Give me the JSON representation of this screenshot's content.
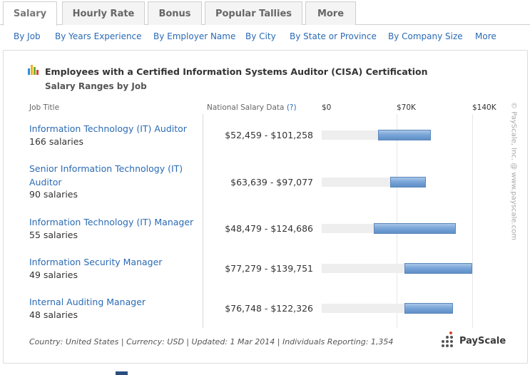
{
  "tabs": [
    {
      "label": "Salary",
      "active": true
    },
    {
      "label": "Hourly Rate"
    },
    {
      "label": "Bonus"
    },
    {
      "label": "Popular Tallies"
    },
    {
      "label": "More"
    }
  ],
  "subnav": [
    "By Job",
    "By Years Experience",
    "By Employer Name",
    "By City",
    "By State or Province",
    "By Company Size",
    "More"
  ],
  "chart": {
    "title": "Employees with a Certified Information Systems Auditor (CISA) Certification",
    "subtitle": "Salary Ranges by Job",
    "col_job": "Job Title",
    "col_salary": "National Salary Data",
    "help": "(?)",
    "ticks": [
      "$0",
      "$70K",
      "$140K"
    ]
  },
  "chart_data": {
    "type": "bar",
    "title": "Employees with a Certified Information Systems Auditor (CISA) Certification",
    "subtitle": "Salary Ranges by Job",
    "xlim": [
      0,
      140000
    ],
    "xticks": [
      "$0",
      "$70K",
      "$140K"
    ],
    "categories": [
      "Information Technology (IT) Auditor",
      "Senior Information Technology (IT) Auditor",
      "Information Technology (IT) Manager",
      "Information Security Manager",
      "Internal Auditing Manager"
    ],
    "rows": [
      {
        "job": "Information Technology (IT) Auditor",
        "count": "166 salaries",
        "range": "$52,459 - $101,258",
        "low": 52459,
        "high": 101258
      },
      {
        "job": "Senior Information Technology (IT) Auditor",
        "count": "90 salaries",
        "range": "$63,639 - $97,077",
        "low": 63639,
        "high": 97077
      },
      {
        "job": "Information Technology (IT) Manager",
        "count": "55 salaries",
        "range": "$48,479 - $124,686",
        "low": 48479,
        "high": 124686
      },
      {
        "job": "Information Security Manager",
        "count": "49 salaries",
        "range": "$77,279 - $139,751",
        "low": 77279,
        "high": 139751
      },
      {
        "job": "Internal Auditing Manager",
        "count": "48 salaries",
        "range": "$76,748 - $122,326",
        "low": 76748,
        "high": 122326
      }
    ],
    "colors": {
      "bar": "#7aa6d8",
      "track": "#eeeeee",
      "link": "#2a6ab4"
    }
  },
  "watermark": "© PayScale, Inc. @ www.payscale.com",
  "footer": "Country: United States | Currency: USD | Updated: 1 Mar 2014 | Individuals Reporting: 1,354",
  "logo": "PayScale"
}
